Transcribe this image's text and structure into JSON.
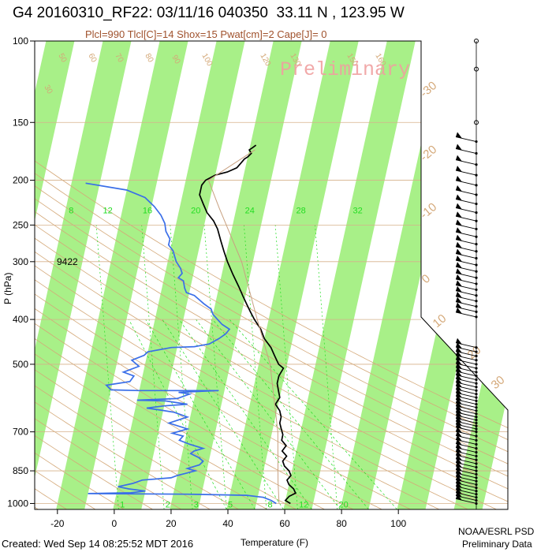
{
  "header": {
    "title": "G4 20160310_RF22: 03/11/16 040350  33.11 N , 123.95 W",
    "subtitle": "Plcl=990 Tlcl[C]=14 Shox=15 Pwat[cm]=2 Cape[J]= 0",
    "watermark": "Preliminary"
  },
  "footer": {
    "created": "Created: Wed Sep 14 08:25:52 MDT 2016",
    "credit_line1": "NOAA/ESRL PSD",
    "credit_line2": "Preliminary Data"
  },
  "chart_data": {
    "type": "line",
    "subtype": "skew-t log-p",
    "xlabel": "Temperature (F)",
    "ylabel": "P (hPa)",
    "xlim": [
      -28,
      108
    ],
    "ylim": [
      1030,
      100
    ],
    "y_scale": "log",
    "x_ticks": [
      "-20",
      "0",
      "20",
      "40",
      "60",
      "80",
      "100"
    ],
    "x_tick_values": [
      -20,
      0,
      20,
      40,
      60,
      80,
      100
    ],
    "y_ticks": [
      "100",
      "150",
      "200",
      "250",
      "300",
      "400",
      "500",
      "700",
      "850",
      "1000"
    ],
    "y_tick_values": [
      100,
      150,
      200,
      250,
      300,
      400,
      500,
      700,
      850,
      1000
    ],
    "height_label": "9422",
    "height_label_p": 300,
    "isotherm_skew_f": 36,
    "mixing_ratio_labels": [
      "8",
      "12",
      "16",
      "20",
      "24",
      "28",
      "32"
    ],
    "mixing_ratio_label_x": [
      -16,
      -4,
      10,
      27,
      46,
      64,
      84
    ],
    "mixing_ratio_label_p": 236,
    "bottom_mixing_labels": [
      "1",
      "2",
      "3",
      "5",
      "8",
      "12",
      "20"
    ],
    "bottom_mixing_x": [
      2,
      18,
      28,
      40,
      54,
      65,
      79
    ],
    "isotherm_labels_c": [
      "-30",
      "-20",
      "-10",
      "0",
      "10",
      "20",
      "30"
    ],
    "adiabat_labels": [
      "30",
      "50",
      "60",
      "70",
      "80",
      "90",
      "100",
      "120",
      "130",
      "150",
      "160"
    ],
    "colors": {
      "temperature": "#000000",
      "dewpoint": "#3a6ee8",
      "band": "#a8f088",
      "adiabat": "#d4a878",
      "mixing": "#22dd22",
      "parcel": "#c8a080"
    },
    "series": [
      {
        "key": "temperature",
        "points": [
          [
            62,
            1000
          ],
          [
            60,
            985
          ],
          [
            61,
            965
          ],
          [
            63,
            950
          ],
          [
            62,
            930
          ],
          [
            60,
            910
          ],
          [
            59,
            890
          ],
          [
            60,
            870
          ],
          [
            59,
            850
          ],
          [
            57,
            830
          ],
          [
            56,
            810
          ],
          [
            57,
            790
          ],
          [
            55,
            770
          ],
          [
            56,
            750
          ],
          [
            54,
            730
          ],
          [
            54,
            710
          ],
          [
            53,
            690
          ],
          [
            52,
            670
          ],
          [
            52,
            650
          ],
          [
            51,
            630
          ],
          [
            49,
            610
          ],
          [
            50,
            590
          ],
          [
            49,
            570
          ],
          [
            48,
            550
          ],
          [
            48,
            530
          ],
          [
            49,
            510
          ],
          [
            47,
            500
          ],
          [
            45,
            480
          ],
          [
            43,
            460
          ],
          [
            40,
            440
          ],
          [
            38,
            420
          ],
          [
            35,
            400
          ],
          [
            33,
            385
          ],
          [
            31,
            370
          ],
          [
            29,
            355
          ],
          [
            27,
            340
          ],
          [
            24,
            320
          ],
          [
            21,
            300
          ],
          [
            19,
            285
          ],
          [
            17,
            270
          ],
          [
            15,
            255
          ],
          [
            13,
            245
          ],
          [
            10,
            235
          ],
          [
            8,
            225
          ],
          [
            6,
            215
          ],
          [
            6,
            205
          ],
          [
            7,
            200
          ],
          [
            10,
            195
          ],
          [
            14,
            192
          ],
          [
            17,
            188
          ],
          [
            18,
            184
          ],
          [
            19,
            180
          ],
          [
            20,
            178
          ],
          [
            21,
            175
          ],
          [
            20,
            172
          ],
          [
            21,
            170
          ],
          [
            22,
            168
          ]
        ]
      },
      {
        "key": "dewpoint",
        "points": [
          [
            57,
            1000
          ],
          [
            55,
            985
          ],
          [
            52,
            970
          ],
          [
            46,
            960
          ],
          [
            25,
            955
          ],
          [
            -10,
            952
          ],
          [
            5,
            948
          ],
          [
            10,
            940
          ],
          [
            4,
            930
          ],
          [
            0,
            920
          ],
          [
            5,
            905
          ],
          [
            8,
            890
          ],
          [
            18,
            880
          ],
          [
            20,
            870
          ],
          [
            23,
            860
          ],
          [
            26,
            850
          ],
          [
            23,
            840
          ],
          [
            27,
            825
          ],
          [
            28,
            810
          ],
          [
            26,
            795
          ],
          [
            23,
            780
          ],
          [
            24,
            770
          ],
          [
            27,
            760
          ],
          [
            22,
            745
          ],
          [
            18,
            730
          ],
          [
            19,
            715
          ],
          [
            15,
            705
          ],
          [
            20,
            690
          ],
          [
            13,
            670
          ],
          [
            19,
            650
          ],
          [
            14,
            635
          ],
          [
            9,
            628
          ],
          [
            4,
            622
          ],
          [
            10,
            615
          ],
          [
            18,
            610
          ],
          [
            10,
            600
          ],
          [
            0,
            598
          ],
          [
            14,
            593
          ],
          [
            18,
            580
          ],
          [
            14,
            575
          ],
          [
            28,
            570
          ],
          [
            0,
            570
          ],
          [
            -10,
            568
          ],
          [
            -12,
            555
          ],
          [
            -4,
            545
          ],
          [
            -3,
            530
          ],
          [
            -7,
            520
          ],
          [
            -2,
            505
          ],
          [
            -5,
            490
          ],
          [
            -1,
            478
          ],
          [
            0,
            470
          ],
          [
            8,
            460
          ],
          [
            16,
            458
          ],
          [
            21,
            452
          ],
          [
            24,
            440
          ],
          [
            26,
            430
          ],
          [
            27,
            420
          ],
          [
            24,
            410
          ],
          [
            22,
            400
          ],
          [
            20,
            390
          ],
          [
            19,
            380
          ],
          [
            16,
            370
          ],
          [
            12,
            355
          ],
          [
            9,
            350
          ],
          [
            8,
            342
          ],
          [
            7,
            330
          ],
          [
            5,
            325
          ],
          [
            6,
            318
          ],
          [
            5,
            310
          ],
          [
            3,
            300
          ],
          [
            2,
            292
          ],
          [
            1,
            284
          ],
          [
            -1,
            276
          ],
          [
            -1,
            268
          ],
          [
            -3,
            258
          ],
          [
            -4,
            248
          ],
          [
            -6,
            238
          ],
          [
            -9,
            228
          ],
          [
            -13,
            218
          ],
          [
            -20,
            210
          ],
          [
            -35,
            203
          ]
        ]
      },
      {
        "key": "parcel",
        "points": [
          [
            58,
            1000
          ],
          [
            56,
            900
          ],
          [
            52,
            700
          ],
          [
            44,
            500
          ],
          [
            36,
            400
          ],
          [
            26,
            300
          ],
          [
            14,
            230
          ],
          [
            8,
            200
          ],
          [
            22,
            172
          ]
        ]
      }
    ],
    "wind_barb_pressures": [
      165,
      175,
      185,
      195,
      205,
      215,
      225,
      235,
      245,
      255,
      265,
      275,
      285,
      295,
      305,
      315,
      325,
      335,
      345,
      355,
      365,
      375,
      385,
      395,
      460,
      470,
      480,
      490,
      500,
      510,
      520,
      530,
      540,
      550,
      560,
      570,
      580,
      590,
      600,
      610,
      620,
      630,
      640,
      650,
      660,
      670,
      680,
      690,
      700,
      715,
      730,
      745,
      760,
      775,
      790,
      805,
      820,
      835,
      850,
      865,
      880,
      895,
      910,
      925,
      940,
      955,
      970,
      985,
      1000
    ]
  }
}
